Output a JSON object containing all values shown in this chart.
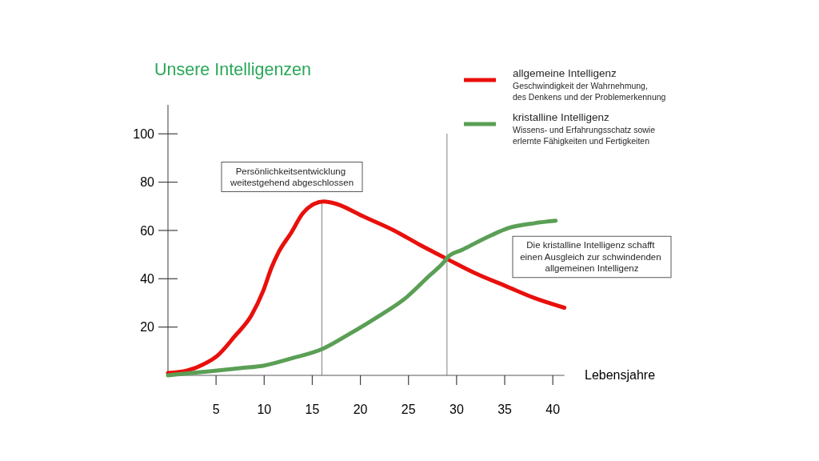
{
  "chart_data": {
    "type": "line",
    "title": "Unsere Intelligenzen",
    "xlabel": "Lebensjahre",
    "xlim": [
      0,
      41.2
    ],
    "ylim": [
      0,
      112
    ],
    "xticks": [
      5,
      10,
      15,
      20,
      25,
      30,
      35,
      40
    ],
    "yticks": [
      20,
      40,
      60,
      80,
      100
    ],
    "legend": "top right",
    "series": [
      {
        "name": "allgemeine Intelligenz",
        "color": "#e8100c",
        "x": [
          0,
          2,
          3.9,
          5.1,
          6.9,
          8.7,
          9.9,
          10.8,
          11.5,
          12.8,
          14,
          15.2,
          16.2,
          17.5,
          20.2,
          23.5,
          26.2,
          29.1,
          32.1,
          35.1,
          38.1,
          41.2
        ],
        "values": [
          1,
          2,
          5,
          8,
          16,
          25,
          35,
          45,
          51,
          59,
          67,
          71,
          72,
          71,
          66,
          60,
          54,
          48,
          42,
          37,
          32,
          28
        ]
      },
      {
        "name": "kristalline Intelligenz",
        "color": "#5a9f55",
        "x": [
          0,
          2.5,
          5.1,
          7.5,
          9.9,
          12.8,
          16.1,
          18.8,
          21.7,
          24.7,
          27.1,
          28.7,
          29.1,
          30.6,
          33.6,
          35.4,
          38.1,
          40.3
        ],
        "values": [
          0,
          1,
          2,
          3,
          4,
          7,
          11,
          17,
          24,
          32,
          41,
          47,
          49,
          52,
          58,
          61,
          63,
          64
        ]
      }
    ],
    "ref_lines": [
      {
        "axis": "x",
        "value": 16,
        "color": "#808080"
      },
      {
        "axis": "x",
        "value": 29,
        "color": "#808080"
      }
    ],
    "annotations": [
      "Geschwindigkeit der Wahrnehmung,\ndes Denkens und der Problemerkennung",
      "Wissens- und Erfahrungsschatz sowie\nerlernte Fähigkeiten und Fertigkeiten",
      "Persönlichkeitsentwicklung\nweitestgehend abgeschlossen",
      "Die kristalline Intelligenz schafft\neinen Ausgleich zur schwindenden\nallgemeinen Intelligenz"
    ]
  }
}
